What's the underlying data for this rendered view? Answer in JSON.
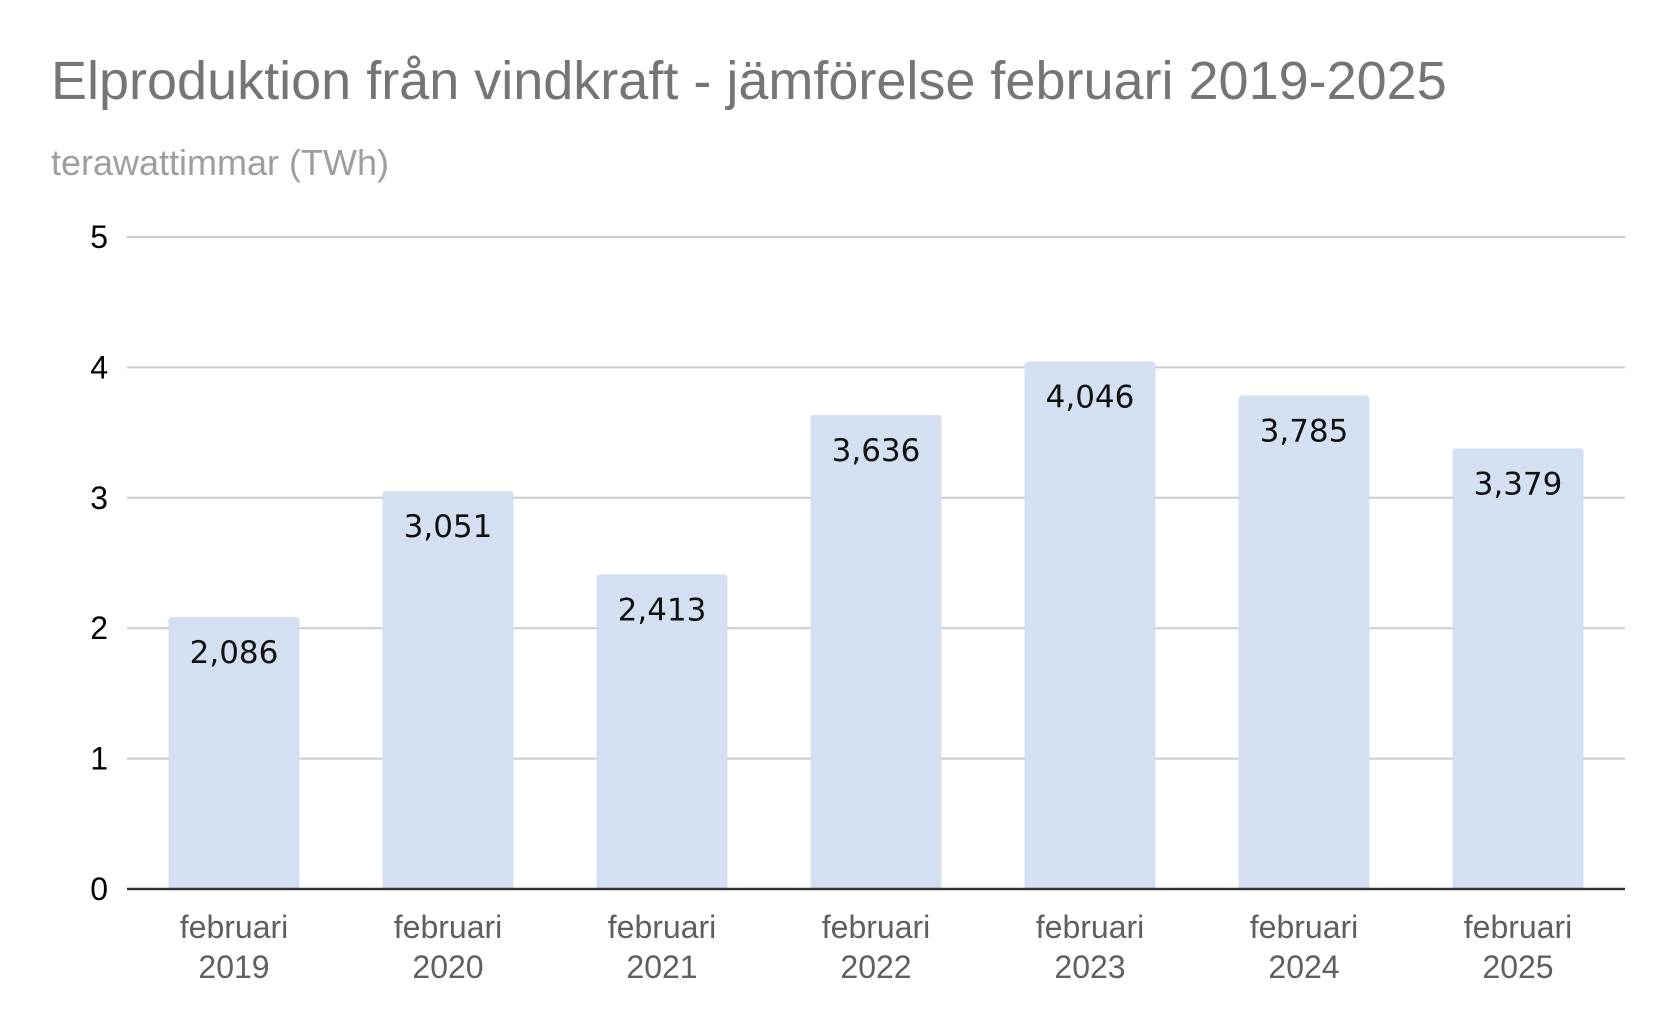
{
  "chart_data": {
    "type": "bar",
    "title": "Elproduktion från vindkraft - jämförelse februari 2019-2025",
    "subtitle": "terawattimmar (TWh)",
    "categories": [
      [
        "februari",
        "2019"
      ],
      [
        "februari",
        "2020"
      ],
      [
        "februari",
        "2021"
      ],
      [
        "februari",
        "2022"
      ],
      [
        "februari",
        "2023"
      ],
      [
        "februari",
        "2024"
      ],
      [
        "februari",
        "2025"
      ]
    ],
    "values": [
      2.086,
      3.051,
      2.413,
      3.636,
      4.046,
      3.785,
      3.379
    ],
    "data_labels": [
      "2,086",
      "3,051",
      "2,413",
      "3,636",
      "4,046",
      "3,785",
      "3,379"
    ],
    "y_ticks": [
      "0",
      "1",
      "2",
      "3",
      "4",
      "5"
    ],
    "ylim": [
      0,
      5
    ],
    "grid": true,
    "legend": false,
    "colors": {
      "bar": "#d4e0f2",
      "gridline": "#cccccc",
      "baseline": "#333333"
    }
  }
}
